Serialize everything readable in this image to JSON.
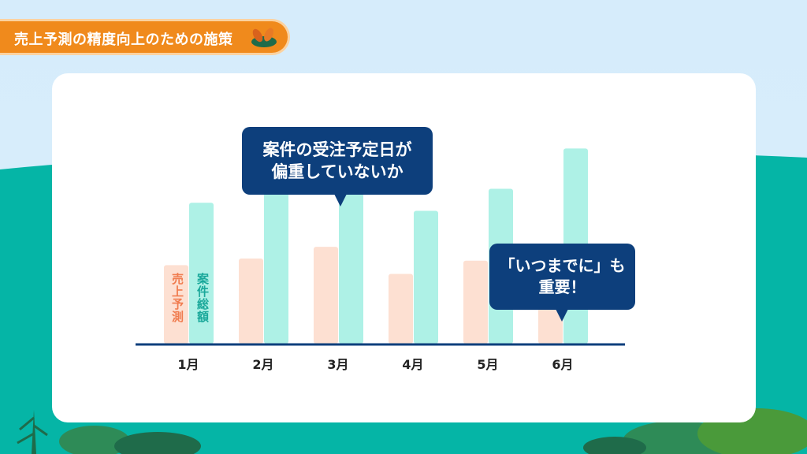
{
  "title": "売上予測の精度向上のための施策",
  "colors": {
    "banner": "#f08a1c",
    "sales_forecast": "#fde0d2",
    "deal_total": "#aef1e6",
    "sales_label": "#f07c4f",
    "deal_label": "#1aa89a",
    "axis": "#0d3f7c",
    "bubble": "#0d3f7c",
    "hill": "#05b5a6"
  },
  "bubbles": {
    "b1": {
      "line1": "案件の受注予定日が",
      "line2": "偏重していないか"
    },
    "b2": {
      "line1": "「いつまでに」も",
      "line2": "重要！"
    }
  },
  "chart_data": {
    "type": "bar",
    "categories": [
      "1月",
      "2月",
      "3月",
      "4月",
      "5月",
      "6月"
    ],
    "series": [
      {
        "name": "売上予測",
        "values": [
          107,
          116,
          132,
          95,
          113,
          60
        ]
      },
      {
        "name": "案件総額",
        "values": [
          192,
          223,
          247,
          181,
          211,
          266
        ]
      }
    ],
    "ylim": [
      0,
      290
    ],
    "grid": false,
    "legend": "vertical labels inside first pair of bars"
  }
}
